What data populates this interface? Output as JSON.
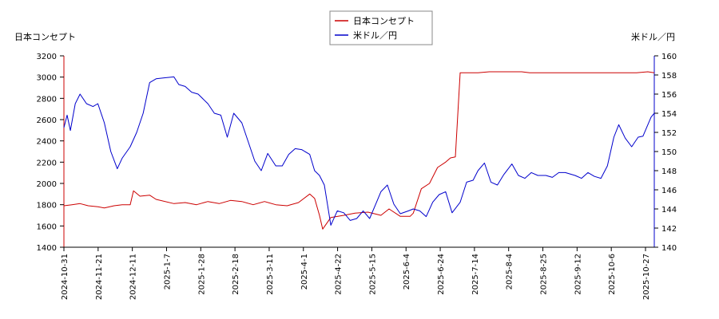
{
  "chart_data": {
    "type": "line",
    "title": "",
    "legend": {
      "placement": "top-center",
      "entries": [
        {
          "name": "日本コンセプト",
          "color": "#cc0000"
        },
        {
          "name": "米ドル／円",
          "color": "#0000cc"
        }
      ]
    },
    "left_axis": {
      "label": "日本コンセプト",
      "range": [
        1400,
        3200
      ],
      "ticks": [
        1400,
        1600,
        1800,
        2000,
        2200,
        2400,
        2600,
        2800,
        3000,
        3200
      ]
    },
    "right_axis": {
      "label": "米ドル／円",
      "range": [
        140,
        160
      ],
      "ticks": [
        140,
        142,
        144,
        146,
        148,
        150,
        152,
        154,
        156,
        158,
        160
      ]
    },
    "x_axis": {
      "range": [
        "2024-10-31",
        "2025-10-31"
      ],
      "tick_labels": [
        "2024-10-31",
        "2024-11-21",
        "2024-12-11",
        "2025-1-7",
        "2025-1-28",
        "2025-2-18",
        "2025-3-11",
        "2025-4-1",
        "2025-4-22",
        "2025-5-15",
        "2025-6-4",
        "2025-6-24",
        "2025-7-14",
        "2025-8-4",
        "2025-8-25",
        "2025-9-12",
        "2025-10-6",
        "2025-10-27"
      ]
    },
    "grid": false,
    "series": [
      {
        "name": "日本コンセプト",
        "axis": "left",
        "color": "#cc0000",
        "x": [
          "2024-10-31",
          "2024-11-05",
          "2024-11-10",
          "2024-11-15",
          "2024-11-21",
          "2024-11-25",
          "2024-12-01",
          "2024-12-06",
          "2024-12-11",
          "2024-12-13",
          "2024-12-17",
          "2024-12-23",
          "2024-12-27",
          "2025-1-7",
          "2025-1-14",
          "2025-1-21",
          "2025-1-28",
          "2025-2-4",
          "2025-2-11",
          "2025-2-18",
          "2025-2-25",
          "2025-3-4",
          "2025-3-11",
          "2025-3-18",
          "2025-3-25",
          "2025-4-1",
          "2025-4-4",
          "2025-4-7",
          "2025-4-9",
          "2025-4-14",
          "2025-4-22",
          "2025-4-29",
          "2025-5-7",
          "2025-5-15",
          "2025-5-20",
          "2025-5-27",
          "2025-6-2",
          "2025-6-4",
          "2025-6-9",
          "2025-6-14",
          "2025-6-19",
          "2025-6-24",
          "2025-6-27",
          "2025-6-30",
          "2025-7-3",
          "2025-7-7",
          "2025-7-14",
          "2025-7-21",
          "2025-8-4",
          "2025-8-10",
          "2025-8-15",
          "2025-8-25",
          "2025-9-12",
          "2025-10-6",
          "2025-10-20",
          "2025-10-27",
          "2025-10-31"
        ],
        "values": [
          1790,
          1800,
          1810,
          1790,
          1780,
          1770,
          1790,
          1800,
          1800,
          1930,
          1880,
          1890,
          1850,
          1810,
          1820,
          1800,
          1830,
          1810,
          1840,
          1830,
          1800,
          1830,
          1800,
          1790,
          1820,
          1900,
          1860,
          1700,
          1570,
          1680,
          1700,
          1720,
          1730,
          1700,
          1760,
          1690,
          1690,
          1720,
          1950,
          2000,
          2150,
          2200,
          2240,
          2250,
          3040,
          3040,
          3040,
          3050,
          3050,
          3050,
          3040,
          3040,
          3040,
          3040,
          3040,
          3050,
          3040
        ]
      },
      {
        "name": "米ドル／円",
        "axis": "right",
        "color": "#0000cc",
        "x": [
          "2024-10-31",
          "2024-11-02",
          "2024-11-04",
          "2024-11-07",
          "2024-11-10",
          "2024-11-14",
          "2024-11-18",
          "2024-11-21",
          "2024-11-25",
          "2024-11-29",
          "2024-12-03",
          "2024-12-06",
          "2024-12-11",
          "2024-12-15",
          "2024-12-19",
          "2024-12-23",
          "2024-12-27",
          "2025-1-1",
          "2025-1-7",
          "2025-1-10",
          "2025-1-14",
          "2025-1-18",
          "2025-1-22",
          "2025-1-28",
          "2025-2-1",
          "2025-2-5",
          "2025-2-9",
          "2025-2-13",
          "2025-2-18",
          "2025-2-22",
          "2025-2-26",
          "2025-3-2",
          "2025-3-6",
          "2025-3-11",
          "2025-3-15",
          "2025-3-19",
          "2025-3-23",
          "2025-3-27",
          "2025-4-1",
          "2025-4-4",
          "2025-4-7",
          "2025-4-10",
          "2025-4-14",
          "2025-4-18",
          "2025-4-22",
          "2025-4-26",
          "2025-4-30",
          "2025-5-4",
          "2025-5-8",
          "2025-5-12",
          "2025-5-15",
          "2025-5-19",
          "2025-5-23",
          "2025-5-27",
          "2025-6-1",
          "2025-6-4",
          "2025-6-8",
          "2025-6-12",
          "2025-6-16",
          "2025-6-20",
          "2025-6-24",
          "2025-6-28",
          "2025-7-3",
          "2025-7-7",
          "2025-7-11",
          "2025-7-14",
          "2025-7-18",
          "2025-7-22",
          "2025-7-26",
          "2025-7-30",
          "2025-8-4",
          "2025-8-8",
          "2025-8-12",
          "2025-8-16",
          "2025-8-20",
          "2025-8-25",
          "2025-8-29",
          "2025-9-2",
          "2025-9-6",
          "2025-9-12",
          "2025-9-16",
          "2025-9-20",
          "2025-9-24",
          "2025-9-28",
          "2025-10-2",
          "2025-10-6",
          "2025-10-9",
          "2025-10-13",
          "2025-10-17",
          "2025-10-21",
          "2025-10-24",
          "2025-10-27",
          "2025-10-29",
          "2025-10-31"
        ],
        "values": [
          152.5,
          153.8,
          152.2,
          155.0,
          156.0,
          155.0,
          154.7,
          155.0,
          153.0,
          150.0,
          148.2,
          149.3,
          150.5,
          152.0,
          154.0,
          157.2,
          157.6,
          157.7,
          157.8,
          157.0,
          156.8,
          156.2,
          156.0,
          155.0,
          154.0,
          153.8,
          151.5,
          154.0,
          153.0,
          151.0,
          149.0,
          148.0,
          149.8,
          148.5,
          148.5,
          149.7,
          150.3,
          150.2,
          149.7,
          148.0,
          147.5,
          146.5,
          142.3,
          143.8,
          143.6,
          142.8,
          143.0,
          143.8,
          143.0,
          144.6,
          145.8,
          146.5,
          144.5,
          143.5,
          143.8,
          144.0,
          143.8,
          143.2,
          144.7,
          145.5,
          145.8,
          143.6,
          144.7,
          146.8,
          147.0,
          148.0,
          148.8,
          146.8,
          146.5,
          147.6,
          148.7,
          147.5,
          147.2,
          147.8,
          147.5,
          147.5,
          147.3,
          147.8,
          147.8,
          147.5,
          147.2,
          147.8,
          147.4,
          147.2,
          148.5,
          151.5,
          152.8,
          151.4,
          150.5,
          151.5,
          151.6,
          152.8,
          153.6,
          154.0
        ]
      }
    ]
  }
}
